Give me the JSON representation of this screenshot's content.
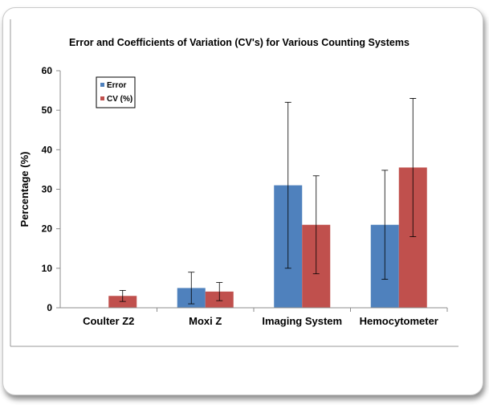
{
  "chart_data": {
    "type": "bar",
    "title": "Error and Coefficients of Variation (CV's) for Various Counting Systems",
    "xlabel": "",
    "ylabel": "Percentage (%)",
    "ylim": [
      0,
      60
    ],
    "yticks": [
      "0",
      "10",
      "20",
      "30",
      "40",
      "50",
      "60"
    ],
    "categories": [
      "Coulter Z2",
      "Moxi Z",
      "Imaging System",
      "Hemocytometer"
    ],
    "legend_position": "top-left",
    "grid": false,
    "series": [
      {
        "name": "Error",
        "color": "#4F81BD",
        "values": [
          0,
          5.0,
          31.0,
          21.0
        ],
        "error": [
          null,
          4.0,
          21.0,
          13.8
        ]
      },
      {
        "name": "CV (%)",
        "color": "#C0504D",
        "values": [
          3.0,
          4.1,
          21.0,
          35.5
        ],
        "error": [
          1.4,
          2.3,
          12.4,
          17.5
        ]
      }
    ]
  }
}
